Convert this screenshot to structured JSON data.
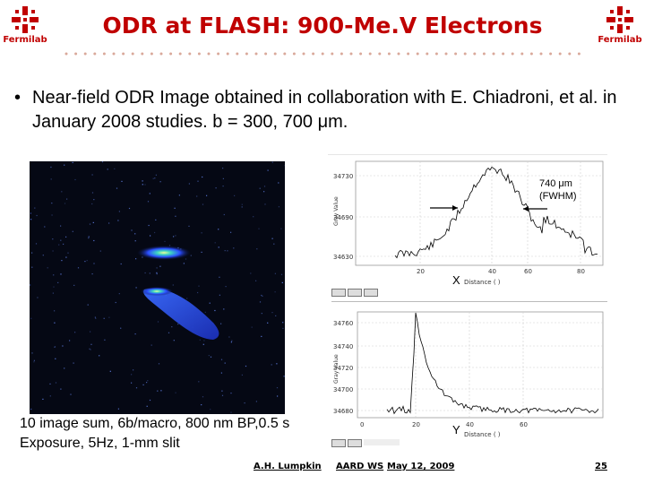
{
  "slide": {
    "title": "ODR at FLASH: 900-Me.V Electrons",
    "logo_label": "Fermilab",
    "bullet": "•",
    "bullet_text": "Near-field ODR Image obtained in collaboration with E. Chiadroni, et al. in January 2008 studies. b = 300, 700 μm.",
    "caption": "10 image sum, 6b/macro, 800 nm BP,0.5 s Exposure, 5Hz, 1-mm slit"
  },
  "plot_x": {
    "yaxis_label": "Gray Value",
    "xaxis_label": "Distance (  )",
    "axis_letter": "X",
    "annotation_line1": "740 μm",
    "annotation_line2": "(FWHM)",
    "y_ticks": [
      "34730",
      "34690",
      "34630"
    ],
    "x_ticks": [
      "20",
      "40",
      "60",
      "80"
    ]
  },
  "plot_y": {
    "yaxis_label": "Gray Value",
    "xaxis_label": "Distance (  )",
    "axis_letter": "Y",
    "y_ticks": [
      "34760",
      "34740",
      "34720",
      "34700",
      "34680"
    ],
    "x_ticks": [
      "0",
      "20",
      "40",
      "60"
    ]
  },
  "footer": {
    "author": "A.H. Lumpkin",
    "meeting": "AARD WS",
    "date": "May 12, 2009",
    "page": "25"
  },
  "colors": {
    "title": "#c00000",
    "plot_line": "#000000",
    "beam_glow": "#2a4cff"
  }
}
